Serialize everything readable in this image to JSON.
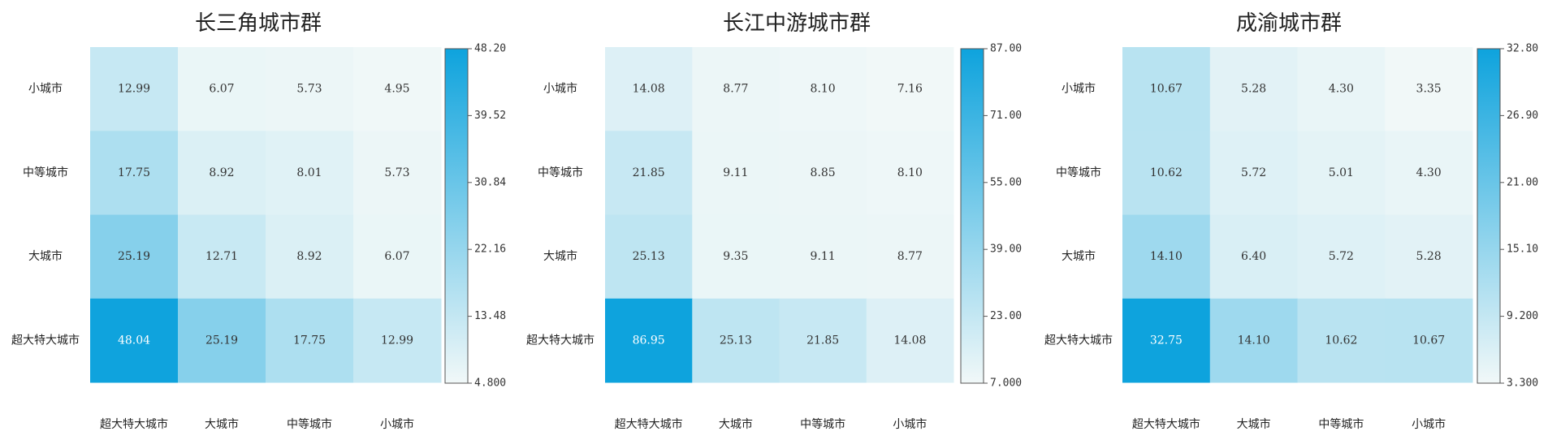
{
  "chart_data": [
    {
      "type": "heatmap",
      "title": "长三角城市群",
      "rows": [
        "小城市",
        "中等城市",
        "大城市",
        "超大特大城市"
      ],
      "cols": [
        "超大特大城市",
        "大城市",
        "中等城市",
        "小城市"
      ],
      "values": [
        [
          12.99,
          6.07,
          5.73,
          4.95
        ],
        [
          17.75,
          8.92,
          8.01,
          5.73
        ],
        [
          25.19,
          12.71,
          8.92,
          6.07
        ],
        [
          48.04,
          25.19,
          17.75,
          12.99
        ]
      ],
      "labels": [
        [
          "12.99",
          "6.07",
          "5.73",
          "4.95"
        ],
        [
          "17.75",
          "8.92",
          "8.01",
          "5.73"
        ],
        [
          "25.19",
          "12.71",
          "8.92",
          "6.07"
        ],
        [
          "48.04",
          "25.19",
          "17.75",
          "12.99"
        ]
      ],
      "colorbar": {
        "min": 4.8,
        "max": 48.2,
        "ticks": [
          "48.20",
          "39.52",
          "30.84",
          "22.16",
          "13.48",
          "4.800"
        ]
      }
    },
    {
      "type": "heatmap",
      "title": "长江中游城市群",
      "rows": [
        "小城市",
        "中等城市",
        "大城市",
        "超大特大城市"
      ],
      "cols": [
        "超大特大城市",
        "大城市",
        "中等城市",
        "小城市"
      ],
      "values": [
        [
          14.08,
          8.77,
          8.1,
          7.16
        ],
        [
          21.85,
          9.11,
          8.85,
          8.1
        ],
        [
          25.13,
          9.35,
          9.11,
          8.77
        ],
        [
          86.95,
          25.13,
          21.85,
          14.08
        ]
      ],
      "labels": [
        [
          "14.08",
          "8.77",
          "8.10",
          "7.16"
        ],
        [
          "21.85",
          "9.11",
          "8.85",
          "8.10"
        ],
        [
          "25.13",
          "9.35",
          "9.11",
          "8.77"
        ],
        [
          "86.95",
          "25.13",
          "21.85",
          "14.08"
        ]
      ],
      "colorbar": {
        "min": 7.0,
        "max": 87.0,
        "ticks": [
          "87.00",
          "71.00",
          "55.00",
          "39.00",
          "23.00",
          "7.000"
        ]
      }
    },
    {
      "type": "heatmap",
      "title": "成渝城市群",
      "rows": [
        "小城市",
        "中等城市",
        "大城市",
        "超大特大城市"
      ],
      "cols": [
        "超大特大城市",
        "大城市",
        "中等城市",
        "小城市"
      ],
      "values": [
        [
          10.67,
          5.28,
          4.3,
          3.35
        ],
        [
          10.62,
          5.72,
          5.01,
          4.3
        ],
        [
          14.1,
          6.4,
          5.72,
          5.28
        ],
        [
          32.75,
          14.1,
          10.62,
          10.67
        ]
      ],
      "labels": [
        [
          "10.67",
          "5.28",
          "4.30",
          "3.35"
        ],
        [
          "10.62",
          "5.72",
          "5.01",
          "4.30"
        ],
        [
          "14.10",
          "6.40",
          "5.72",
          "5.28"
        ],
        [
          "32.75",
          "14.10",
          "10.62",
          "10.67"
        ]
      ],
      "colorbar": {
        "min": 3.3,
        "max": 32.8,
        "ticks": [
          "32.80",
          "26.90",
          "21.00",
          "15.10",
          "9.200",
          "3.300"
        ]
      }
    }
  ],
  "colors": {
    "low": "#f1f8f8",
    "high": "#0ea3dd",
    "cell_text": "#333333",
    "white_text": "#ffffff"
  }
}
